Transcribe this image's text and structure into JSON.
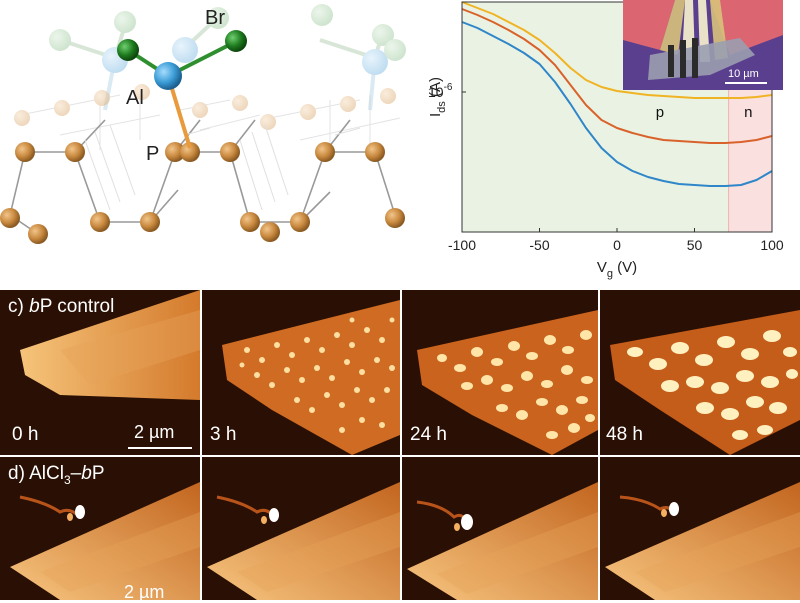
{
  "structure_panel": {
    "atoms": {
      "br": "Br",
      "al": "Al",
      "p": "P"
    },
    "colors": {
      "phosphorus": "#c8883e",
      "aluminum": "#3a9bd5",
      "bromine": "#1e7a1e",
      "bond": "#999999"
    }
  },
  "transfer_panel": {
    "chart_data": {
      "type": "line",
      "xlabel_main": "V",
      "xlabel_sub": "g",
      "xlabel_unit": " (V)",
      "ylabel_main": "I",
      "ylabel_sub": "ds",
      "ylabel_unit": " (A)",
      "x_ticks": [
        "-100",
        "-50",
        "0",
        "50",
        "100"
      ],
      "y_tick_base": "10",
      "y_tick_exp": "-6",
      "xlim": [
        -100,
        100
      ],
      "y_scale": "log",
      "ylim_log10": [
        -7.4,
        -5.1
      ],
      "regions": [
        {
          "label": "p",
          "from": -100,
          "to": 72,
          "color": "#eaf3e3"
        },
        {
          "label": "n",
          "from": 72,
          "to": 100,
          "color": "#fbe0e0"
        }
      ],
      "series": [
        {
          "color": "#f0b323",
          "x": [
            -100,
            -90,
            -80,
            -70,
            -60,
            -50,
            -40,
            -30,
            -20,
            -10,
            0,
            10,
            20,
            30,
            40,
            50,
            60,
            70,
            80,
            90,
            100
          ],
          "log10_y": [
            -5.1,
            -5.16,
            -5.22,
            -5.3,
            -5.38,
            -5.48,
            -5.61,
            -5.76,
            -5.88,
            -5.95,
            -5.99,
            -6.01,
            -6.03,
            -6.04,
            -6.05,
            -6.06,
            -6.06,
            -6.06,
            -6.06,
            -6.05,
            -6.03
          ]
        },
        {
          "color": "#d9622b",
          "x": [
            -100,
            -90,
            -80,
            -70,
            -60,
            -50,
            -40,
            -30,
            -20,
            -10,
            0,
            10,
            20,
            30,
            40,
            50,
            60,
            70,
            80,
            90,
            100
          ],
          "log10_y": [
            -5.17,
            -5.23,
            -5.3,
            -5.38,
            -5.47,
            -5.58,
            -5.73,
            -5.93,
            -6.13,
            -6.28,
            -6.36,
            -6.41,
            -6.45,
            -6.48,
            -6.49,
            -6.5,
            -6.51,
            -6.51,
            -6.5,
            -6.48,
            -6.44
          ]
        },
        {
          "color": "#2f86c8",
          "x": [
            -100,
            -90,
            -80,
            -70,
            -60,
            -50,
            -40,
            -30,
            -20,
            -10,
            0,
            10,
            20,
            30,
            40,
            50,
            60,
            70,
            80,
            90,
            100
          ],
          "log10_y": [
            -5.3,
            -5.36,
            -5.44,
            -5.52,
            -5.61,
            -5.72,
            -5.9,
            -6.12,
            -6.36,
            -6.56,
            -6.7,
            -6.79,
            -6.85,
            -6.89,
            -6.92,
            -6.93,
            -6.94,
            -6.94,
            -6.93,
            -6.88,
            -6.79
          ]
        }
      ],
      "inset": {
        "scale_text": "10 µm"
      }
    }
  },
  "afm_rows": [
    {
      "label_prefix": "c) ",
      "label_italic": "b",
      "label_suffix": "P control",
      "times": [
        "0 h",
        "3 h",
        "24 h",
        "48 h"
      ],
      "scale_text": "2 µm"
    },
    {
      "label_prefix": "d) AlCl",
      "label_sub": "3",
      "label_dash": "–",
      "label_italic": "b",
      "label_suffix": "P",
      "scale_text": "2 µm"
    }
  ]
}
